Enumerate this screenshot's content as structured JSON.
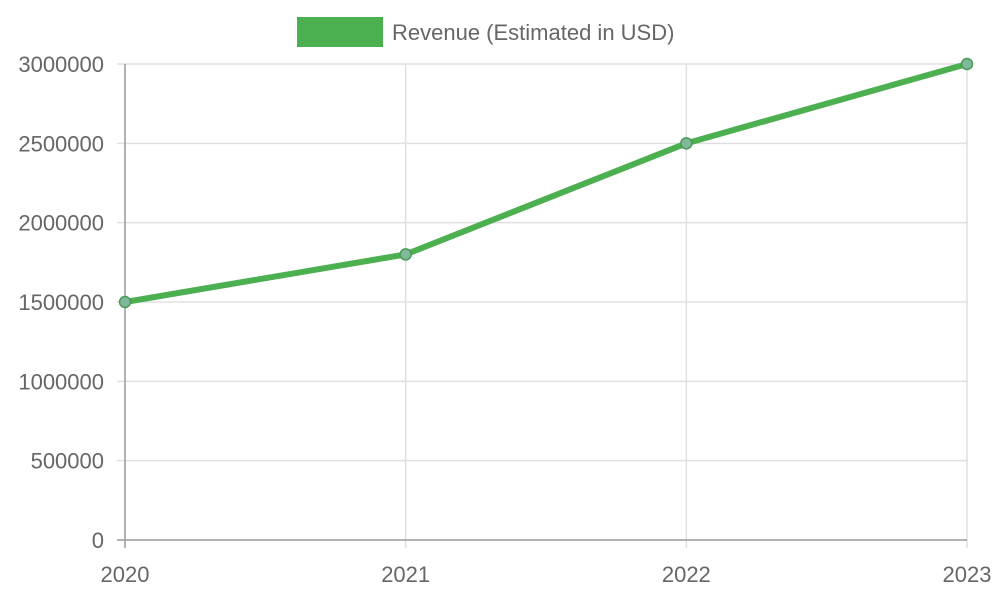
{
  "chart_data": {
    "type": "line",
    "categories": [
      "2020",
      "2021",
      "2022",
      "2023"
    ],
    "series": [
      {
        "name": "Revenue (Estimated in USD)",
        "values": [
          1500000,
          1800000,
          2500000,
          3000000
        ]
      }
    ],
    "ylim": [
      0,
      3000000
    ],
    "y_ticks": [
      0,
      500000,
      1000000,
      1500000,
      2000000,
      2500000,
      3000000
    ],
    "y_tick_labels": [
      "0",
      "500000",
      "1000000",
      "1500000",
      "2000000",
      "2500000",
      "3000000"
    ],
    "grid": true,
    "legend_position": "top-center",
    "colors": {
      "series_line": "#4caf50",
      "point_fill": "#7fb89a",
      "point_stroke": "#4a9a55",
      "grid": "#e0e0e0",
      "axis": "#9e9e9e",
      "text": "#666666"
    }
  }
}
